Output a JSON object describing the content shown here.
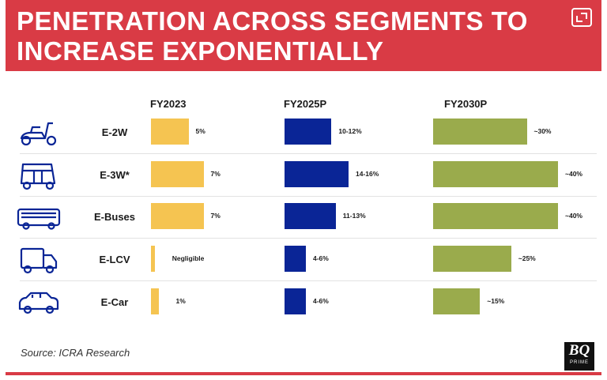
{
  "header": {
    "title": "PENETRATION ACROSS SEGMENTS TO INCREASE EXPONENTIALLY"
  },
  "source": "Source: ICRA Research",
  "logo": {
    "main": "BQ",
    "sub": "PRIME"
  },
  "colors": {
    "header_bg": "#d93b45",
    "fy2023": "#f5c451",
    "fy2025p": "#0a2596",
    "fy2030p": "#9aab4c"
  },
  "chart_data": {
    "type": "bar",
    "orientation": "horizontal",
    "title": "PENETRATION ACROSS SEGMENTS TO INCREASE EXPONENTIALLY",
    "unit": "%",
    "categories": [
      "E-2W",
      "E-3W*",
      "E-Buses",
      "E-LCV",
      "E-Car"
    ],
    "category_icons": [
      "scooter-icon",
      "auto-rickshaw-icon",
      "bus-icon",
      "truck-icon",
      "car-icon"
    ],
    "series": [
      {
        "name": "FY2023",
        "values": [
          5,
          7,
          7,
          0.5,
          1
        ],
        "labels": [
          "5%",
          "7%",
          "7%",
          "Negligible",
          "1%"
        ]
      },
      {
        "name": "FY2025P",
        "values": [
          11,
          15,
          12,
          5,
          5
        ],
        "labels": [
          "10-12%",
          "14-16%",
          "11-13%",
          "4-6%",
          "4-6%"
        ]
      },
      {
        "name": "FY2030P",
        "values": [
          30,
          40,
          40,
          25,
          15
        ],
        "labels": [
          "~30%",
          "~40%",
          "~40%",
          "~25%",
          "~15%"
        ]
      }
    ]
  }
}
